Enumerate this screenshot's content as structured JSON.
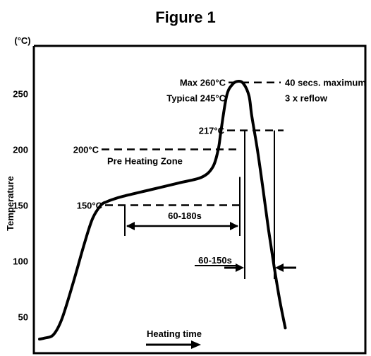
{
  "title": "Figure 1",
  "chart_data": {
    "type": "line",
    "title": "Figure 1",
    "ylabel": "Temperature",
    "yunit": "(°C)",
    "xlabel": "Heating time",
    "yticks": [
      50,
      100,
      150,
      200,
      250
    ],
    "ylim": [
      25,
      275
    ],
    "xlim": [
      0,
      100
    ],
    "series": [
      {
        "x": [
          0,
          2,
          5,
          8,
          12,
          16,
          19,
          22,
          24,
          26,
          30,
          40,
          50,
          58,
          62,
          64,
          65,
          67,
          69,
          71,
          73,
          75,
          76,
          78,
          80,
          82,
          84,
          86,
          88
        ],
        "values": [
          30,
          31,
          34,
          48,
          80,
          115,
          138,
          150,
          153,
          155,
          158,
          164,
          170,
          175,
          184,
          200,
          217,
          248,
          258,
          261,
          259,
          248,
          230,
          200,
          165,
          128,
          95,
          65,
          40
        ]
      }
    ],
    "annotations": {
      "max_label": "Max 260°C",
      "typical_label": "Typical 245°C",
      "time_max_label": "40 secs. maximum",
      "reflow_label": "3 x reflow",
      "l217": "217°C",
      "l200": "200°C",
      "preheat_label": "Pre Heating Zone",
      "l150": "150°C",
      "dur1": "60-180s",
      "dur2": "60-150s"
    },
    "grid": false
  }
}
